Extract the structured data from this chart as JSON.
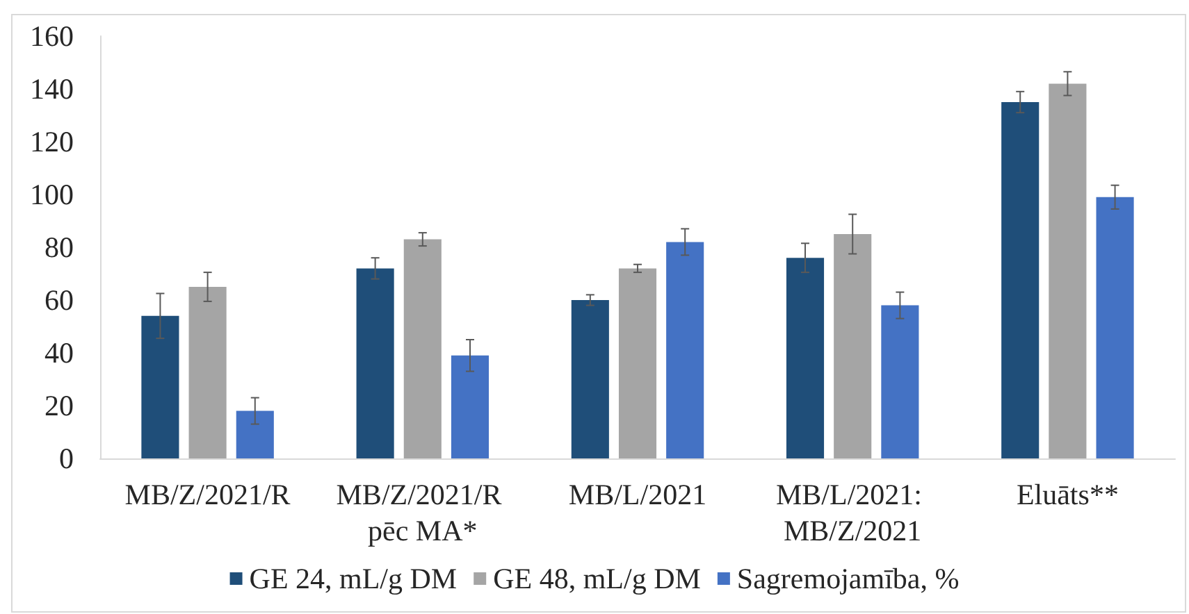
{
  "chart_data": {
    "type": "bar",
    "categories": [
      "MB/Z/2021/R",
      "MB/Z/2021/R pēc MA*",
      "MB/L/2021",
      "MB/L/2021: MB/Z/2021",
      "Eluāts**"
    ],
    "series": [
      {
        "name": "GE 24, mL/g DM",
        "color": "#1f4e79",
        "values": [
          54,
          72,
          60,
          76,
          135
        ],
        "errors": [
          8.5,
          4,
          2,
          5.5,
          4
        ]
      },
      {
        "name": "GE 48, mL/g DM",
        "color": "#a5a5a5",
        "values": [
          65,
          83,
          72,
          85,
          142
        ],
        "errors": [
          5.5,
          2.5,
          1.5,
          7.5,
          4.5
        ]
      },
      {
        "name": "Sagremojamība, %",
        "color": "#4472c4",
        "values": [
          18,
          39,
          82,
          58,
          99
        ],
        "errors": [
          5,
          6,
          5,
          5,
          4.5
        ]
      }
    ],
    "ylim": [
      0,
      160
    ],
    "yticks": [
      0,
      20,
      40,
      60,
      80,
      100,
      120,
      140,
      160
    ],
    "legend": "bottom"
  }
}
